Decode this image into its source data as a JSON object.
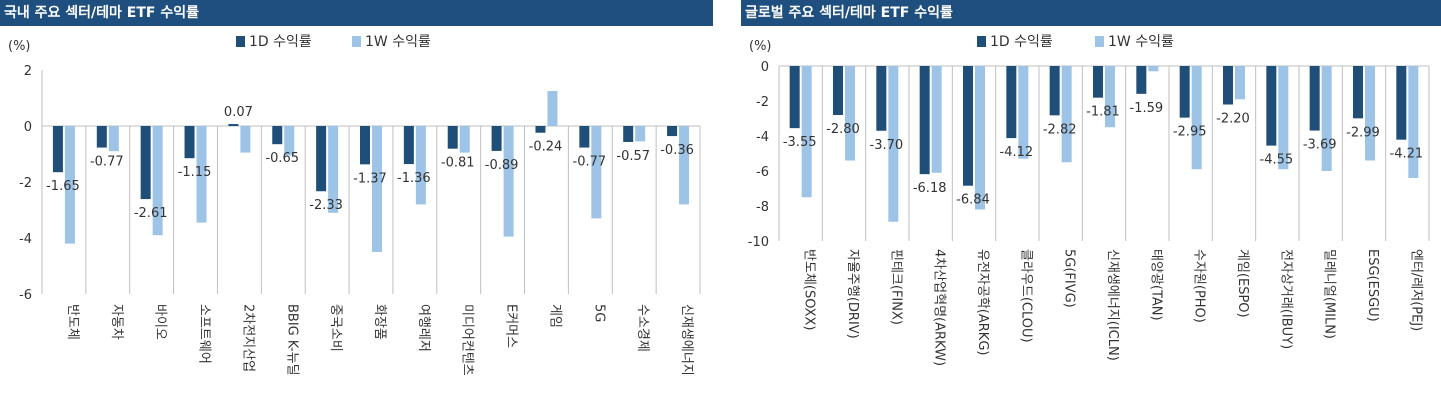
{
  "colors": {
    "title_bg": "#1e4f7e",
    "series_1d": "#1f4e79",
    "series_1w": "#9dc3e6",
    "axis": "#bfbfbf",
    "text": "#333333"
  },
  "chart_data": [
    {
      "type": "bar",
      "title": "국내 주요 섹터/테마 ETF 수익률",
      "ylabel": "(%)",
      "ylim": [
        -6,
        2
      ],
      "yticks": [
        2,
        0,
        -2,
        -4,
        -6
      ],
      "categories": [
        "반도체",
        "자동차",
        "바이오",
        "소프트웨어",
        "2차전지산업",
        "BBIG K-뉴딜",
        "중국소비",
        "화장품",
        "여행레저",
        "미디어컨텐츠",
        "E커머스",
        "게임",
        "5G",
        "수소경제",
        "신재생에너지"
      ],
      "series": [
        {
          "name": "1D 수익률",
          "values": [
            -1.65,
            -0.77,
            -2.61,
            -1.15,
            0.07,
            -0.65,
            -2.33,
            -1.37,
            -1.36,
            -0.81,
            -0.89,
            -0.24,
            -0.77,
            -0.57,
            -0.36
          ]
        },
        {
          "name": "1W 수익률",
          "values": [
            -4.2,
            -0.9,
            -3.9,
            -3.45,
            -0.95,
            -1.05,
            -3.1,
            -4.5,
            -2.8,
            -0.95,
            -3.95,
            1.25,
            -3.3,
            -0.55,
            -2.8
          ]
        }
      ],
      "data_labels": [
        "-1.65",
        "-0.77",
        "-2.61",
        "-1.15",
        "0.07",
        "-0.65",
        "-2.33",
        "-1.37",
        "-1.36",
        "-0.81",
        "-0.89",
        "-0.24",
        "-0.77",
        "-0.57",
        "-0.36"
      ],
      "legend_position": "top"
    },
    {
      "type": "bar",
      "title": "글로벌 주요 섹터/테마 ETF 수익률",
      "ylabel": "(%)",
      "ylim": [
        -10,
        0
      ],
      "yticks": [
        0,
        -2,
        -4,
        -6,
        -8,
        -10
      ],
      "categories": [
        "반도체(SOXX)",
        "자율주행(DRIV)",
        "핀테크(FINX)",
        "4차산업혁명(ARKW)",
        "유전자공학(ARKG)",
        "클라우드(CLOU)",
        "5G(FIVG)",
        "신재생에너지(ICLN)",
        "태양광(TAN)",
        "수자원(PHO)",
        "게임(ESPO)",
        "전자상거래(IBUY)",
        "밀레니얼(MILN)",
        "ESG(ESGU)",
        "엔터/레저(PEJ)"
      ],
      "series": [
        {
          "name": "1D 수익률",
          "values": [
            -3.55,
            -2.8,
            -3.7,
            -6.18,
            -6.84,
            -4.12,
            -2.82,
            -1.81,
            -1.59,
            -2.95,
            -2.2,
            -4.55,
            -3.69,
            -2.99,
            -4.21
          ]
        },
        {
          "name": "1W 수익률",
          "values": [
            -7.5,
            -5.4,
            -8.9,
            -6.1,
            -8.2,
            -5.3,
            -5.5,
            -3.5,
            -0.3,
            -5.9,
            -1.9,
            -5.9,
            -6.0,
            -5.4,
            -6.4
          ]
        }
      ],
      "data_labels": [
        "-3.55",
        "-2.80",
        "-3.70",
        "-6.18",
        "-6.84",
        "-4.12",
        "-2.82",
        "-1.81",
        "-1.59",
        "-2.95",
        "-2.20",
        "-4.55",
        "-3.69",
        "-2.99",
        "-4.21"
      ],
      "legend_position": "top"
    }
  ]
}
